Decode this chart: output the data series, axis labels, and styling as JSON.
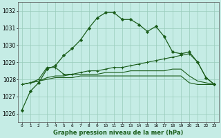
{
  "title": "Graphe pression niveau de la mer (hPa)",
  "xlabel_ticks": [
    0,
    1,
    2,
    3,
    4,
    5,
    6,
    7,
    8,
    9,
    10,
    11,
    12,
    13,
    14,
    15,
    16,
    17,
    18,
    19,
    20,
    21,
    22,
    23
  ],
  "ylim": [
    1025.5,
    1032.5
  ],
  "yticks": [
    1026,
    1027,
    1028,
    1029,
    1030,
    1031,
    1032
  ],
  "bg_color": "#c5ece5",
  "grid_color": "#99ccbb",
  "line_color": "#1a5c1a",
  "line1": [
    1026.2,
    1027.3,
    1027.8,
    1028.6,
    1028.8,
    1029.4,
    1029.8,
    1030.3,
    1031.0,
    1031.6,
    1031.9,
    1031.9,
    1031.5,
    1031.5,
    1031.2,
    1030.8,
    1031.1,
    1030.5,
    1029.6,
    1029.5,
    1029.6,
    1029.0,
    1028.1,
    1027.7
  ],
  "line2": [
    1027.7,
    1027.8,
    1028.0,
    1028.7,
    1028.7,
    1028.3,
    1028.3,
    1028.4,
    1028.5,
    1028.5,
    1028.6,
    1028.7,
    1028.7,
    1028.8,
    1028.9,
    1029.0,
    1029.1,
    1029.2,
    1029.3,
    1029.4,
    1029.5,
    1029.0,
    1028.1,
    1027.7
  ],
  "line3": [
    1027.7,
    1027.8,
    1027.9,
    1028.1,
    1028.2,
    1028.2,
    1028.3,
    1028.3,
    1028.3,
    1028.3,
    1028.4,
    1028.4,
    1028.4,
    1028.5,
    1028.5,
    1028.5,
    1028.5,
    1028.5,
    1028.6,
    1028.6,
    1028.2,
    1027.9,
    1027.8,
    1027.7
  ],
  "line4": [
    1027.7,
    1027.8,
    1027.9,
    1028.0,
    1028.1,
    1028.1,
    1028.1,
    1028.2,
    1028.2,
    1028.2,
    1028.2,
    1028.2,
    1028.2,
    1028.2,
    1028.2,
    1028.2,
    1028.2,
    1028.2,
    1028.2,
    1028.2,
    1027.8,
    1027.7,
    1027.7,
    1027.7
  ]
}
